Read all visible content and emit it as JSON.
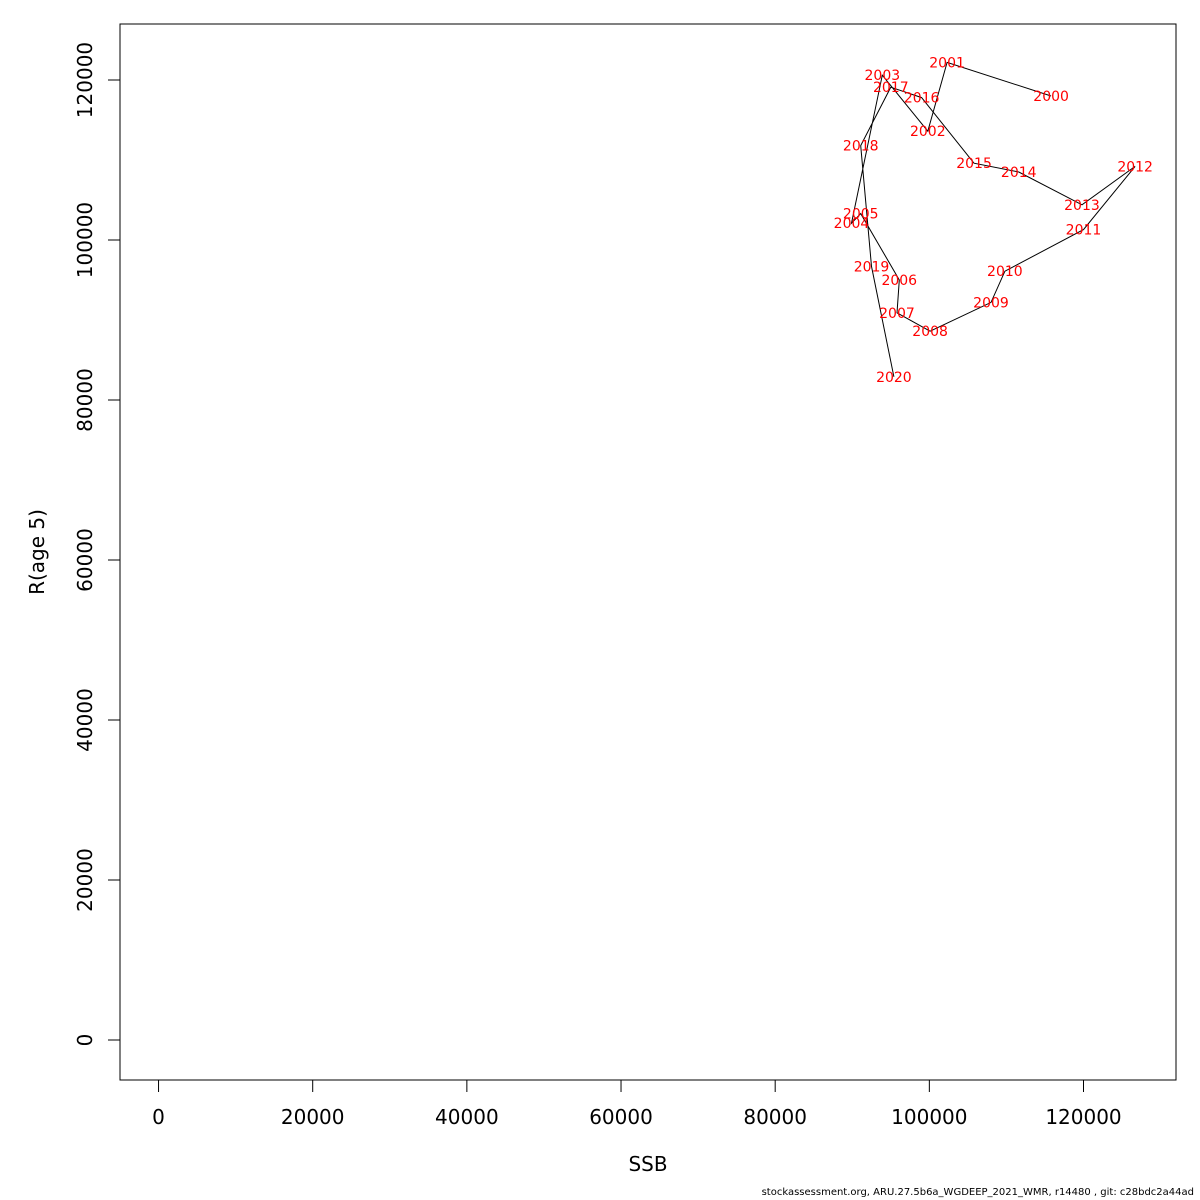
{
  "chart_data": {
    "type": "line",
    "xlabel": "SSB",
    "ylabel": "R(age 5)",
    "xlim": [
      -5000,
      132000
    ],
    "ylim": [
      -5000,
      127000
    ],
    "xticks": [
      0,
      20000,
      40000,
      60000,
      80000,
      100000,
      120000
    ],
    "yticks": [
      0,
      20000,
      40000,
      60000,
      80000,
      100000,
      120000
    ],
    "grid": false,
    "label_color": "#ff0000",
    "line_color": "#000000",
    "points": [
      {
        "year": "2000",
        "x": 115800,
        "y": 118000
      },
      {
        "year": "2001",
        "x": 102300,
        "y": 122200
      },
      {
        "year": "2002",
        "x": 99800,
        "y": 113600
      },
      {
        "year": "2003",
        "x": 93900,
        "y": 120600
      },
      {
        "year": "2004",
        "x": 89900,
        "y": 102100
      },
      {
        "year": "2005",
        "x": 91100,
        "y": 103300
      },
      {
        "year": "2006",
        "x": 96100,
        "y": 95000
      },
      {
        "year": "2007",
        "x": 95800,
        "y": 90900
      },
      {
        "year": "2008",
        "x": 100100,
        "y": 88600
      },
      {
        "year": "2009",
        "x": 108000,
        "y": 92200
      },
      {
        "year": "2010",
        "x": 109800,
        "y": 96100
      },
      {
        "year": "2011",
        "x": 120000,
        "y": 101300
      },
      {
        "year": "2012",
        "x": 126700,
        "y": 109200
      },
      {
        "year": "2013",
        "x": 119800,
        "y": 104400
      },
      {
        "year": "2014",
        "x": 111600,
        "y": 108500
      },
      {
        "year": "2015",
        "x": 105800,
        "y": 109600
      },
      {
        "year": "2016",
        "x": 99000,
        "y": 117800
      },
      {
        "year": "2017",
        "x": 95000,
        "y": 119100
      },
      {
        "year": "2018",
        "x": 91100,
        "y": 111800
      },
      {
        "year": "2019",
        "x": 92500,
        "y": 96700
      },
      {
        "year": "2020",
        "x": 95400,
        "y": 82900
      }
    ]
  },
  "footer_text": "stockassessment.org, ARU.27.5b6a_WGDEEP_2021_WMR, r14480 , git: c28bdc2a44ad"
}
